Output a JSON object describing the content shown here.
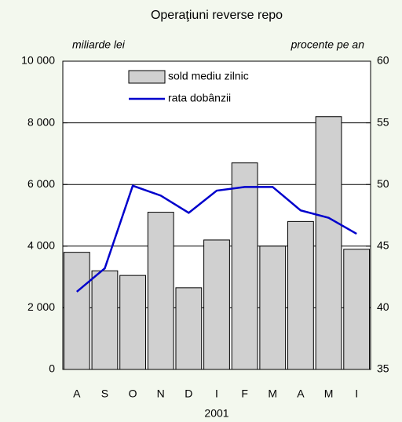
{
  "chart_data": {
    "type": "bar_line",
    "title": "Operaţiuni reverse repo",
    "y_label": "miliarde lei",
    "y2_label": "procente pe an",
    "x_annotation": "2001",
    "categories": [
      "A",
      "S",
      "O",
      "N",
      "D",
      "I",
      "F",
      "M",
      "A",
      "M",
      "I"
    ],
    "series": [
      {
        "name": "sold mediu zilnic",
        "type": "bar",
        "color": "#d0d0d0",
        "values": [
          3800,
          3200,
          3050,
          5100,
          2650,
          4200,
          6700,
          4000,
          4800,
          8200,
          3900
        ]
      },
      {
        "name": "rata dobânzii",
        "type": "line",
        "axis": "y2",
        "color": "#0000cc",
        "values": [
          41.3,
          43.2,
          49.9,
          49.1,
          47.7,
          49.5,
          49.8,
          49.8,
          47.9,
          47.3,
          46.0
        ]
      }
    ],
    "ylim": [
      0,
      10000
    ],
    "yticks": [
      0,
      {
        "value": 2000,
        "label": "2 000"
      },
      {
        "value": 4000,
        "label": "4 000"
      },
      {
        "value": 6000,
        "label": "6 000"
      },
      {
        "value": 8000,
        "label": "8 000"
      },
      {
        "value": 10000,
        "label": "10 000"
      }
    ],
    "y2lim": [
      35,
      60
    ],
    "y2ticks": [
      35,
      40,
      45,
      50,
      55,
      60
    ],
    "grid": true,
    "legend": "top"
  }
}
